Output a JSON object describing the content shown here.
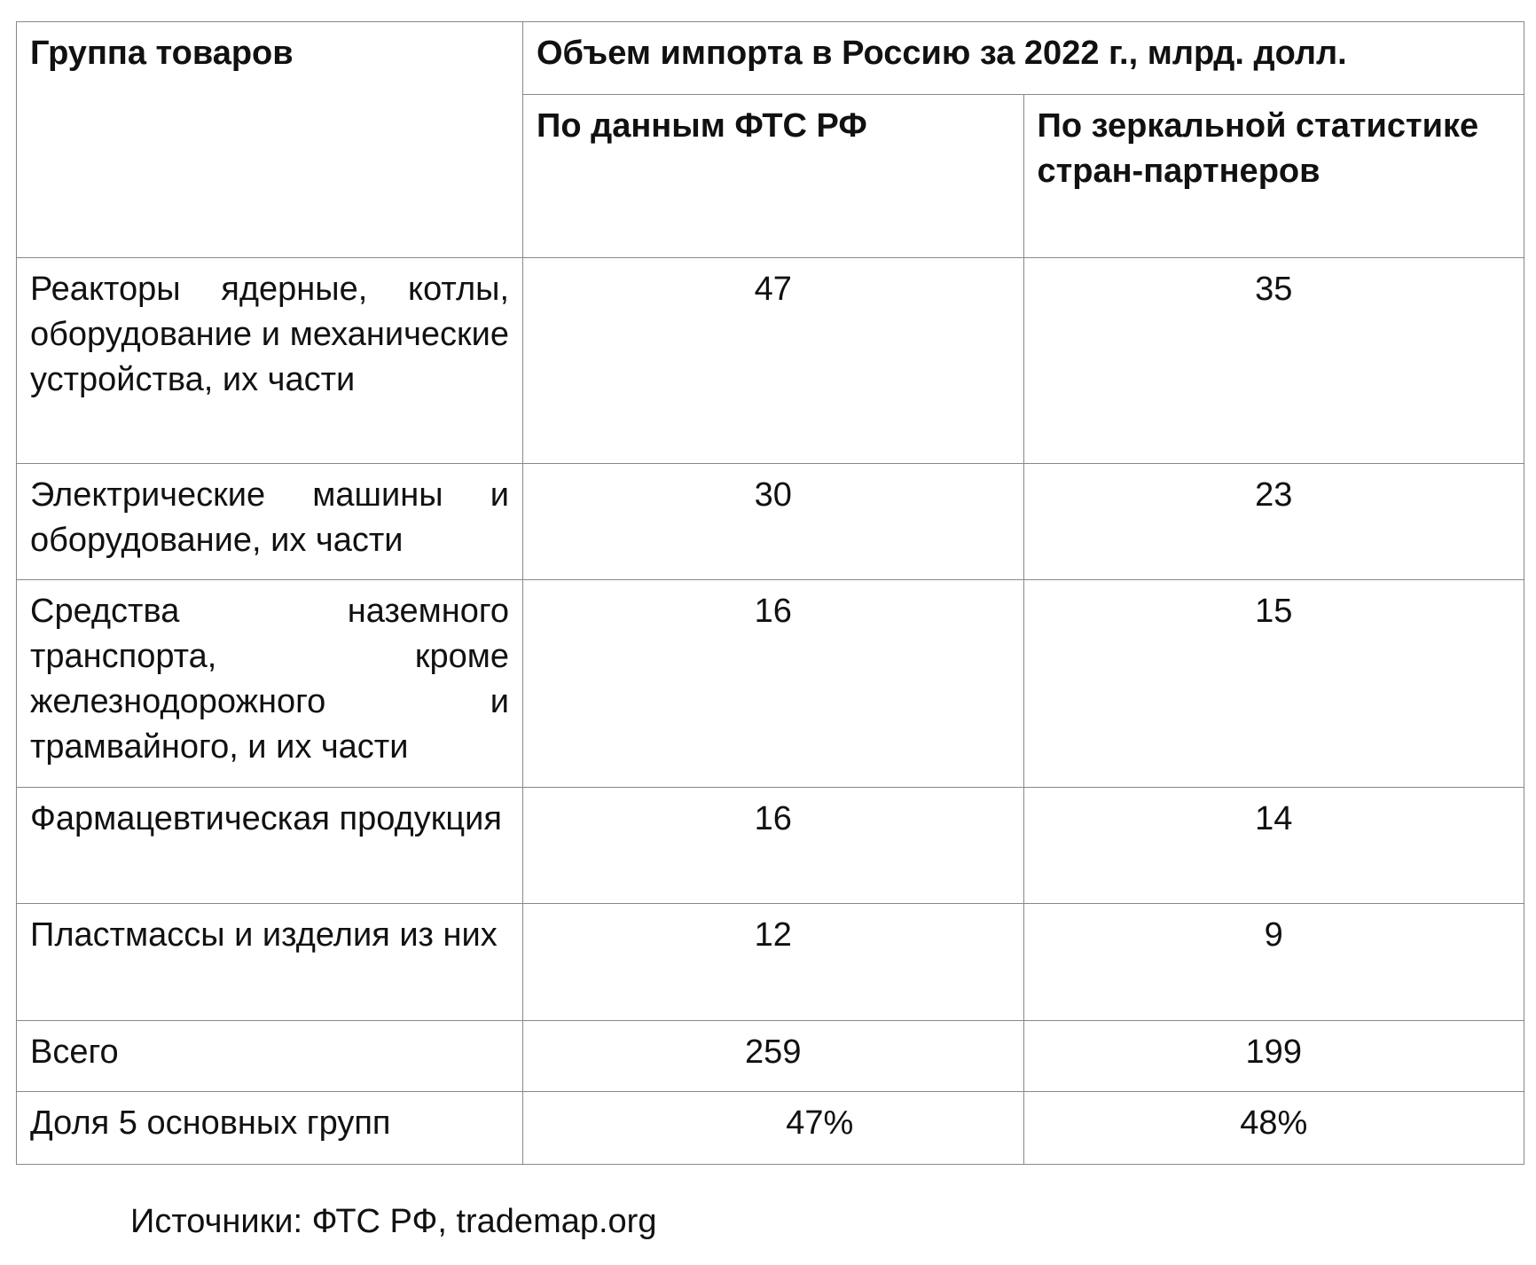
{
  "table": {
    "header": {
      "group": "Группа товаров",
      "volume": "Объем импорта в Россию за 2022 г., млрд. долл.",
      "fts": "По данным ФТС РФ",
      "mirror": "По зеркальной статистике стран-партнеров"
    },
    "rows": [
      {
        "group": "Реакторы ядерные, котлы, оборудование и механические устройства, их части",
        "fts": "47",
        "mirror": "35"
      },
      {
        "group": "Электрические машины и оборудование, их части",
        "fts": "30",
        "mirror": "23"
      },
      {
        "group": "Средства наземного транспорта, кроме железнодорожного и трамвайного, и их части",
        "fts": "16",
        "mirror": "15"
      },
      {
        "group": "Фармацевтическая продукция",
        "fts": "16",
        "mirror": "14"
      },
      {
        "group": "Пластмассы и изделия из них",
        "fts": "12",
        "mirror": "9"
      },
      {
        "group": "Всего",
        "fts": "259",
        "mirror": "199"
      },
      {
        "group": "Доля 5 основных групп",
        "fts": "47%",
        "mirror": "48%"
      }
    ]
  },
  "source": "Источники: ФТС РФ, trademap.org"
}
